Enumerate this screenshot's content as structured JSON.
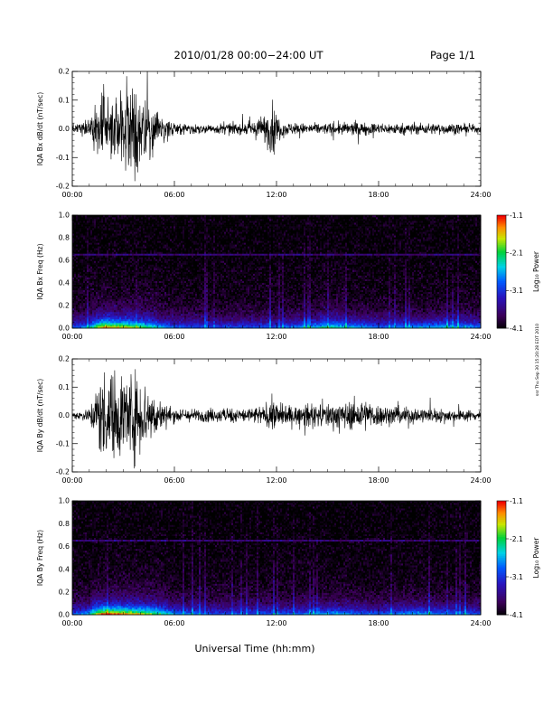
{
  "header": {
    "date_range": "2010/01/28  00:00−24:00 UT",
    "page": "Page 1/1"
  },
  "xaxis": {
    "label": "Universal Time (hh:mm)",
    "ticks": [
      "00:00",
      "06:00",
      "12:00",
      "18:00",
      "24:00"
    ],
    "range_hours": [
      0,
      24
    ]
  },
  "side_note": "ssr Thu Sep 30 15:20:28 EDT 2010",
  "chart_data": [
    {
      "type": "line",
      "name": "bx-waveform",
      "ylabel": "IQA Bx dB/dt (nT/sec)",
      "ylim": [
        -0.2,
        0.2
      ],
      "yticks": [
        "-0.2",
        "-0.1",
        "0.0",
        "0.1",
        "0.2"
      ],
      "ytick_values": [
        -0.2,
        -0.1,
        0.0,
        0.1,
        0.2
      ],
      "x": [
        0,
        0.5,
        1.0,
        1.3,
        1.6,
        2.0,
        2.5,
        3.0,
        3.5,
        4.0,
        4.5,
        5.0,
        5.5,
        6.0,
        7.0,
        8.0,
        9.0,
        10.0,
        10.5,
        11.0,
        11.5,
        11.8,
        12.0,
        12.5,
        13.0,
        14.0,
        15.0,
        16.0,
        17.0,
        18.0,
        19.0,
        20.0,
        21.0,
        22.0,
        23.0,
        24.0
      ],
      "amplitude": [
        0.02,
        0.03,
        0.05,
        0.12,
        0.2,
        0.22,
        0.22,
        0.22,
        0.22,
        0.2,
        0.13,
        0.1,
        0.06,
        0.04,
        0.025,
        0.025,
        0.03,
        0.03,
        0.04,
        0.06,
        0.1,
        0.14,
        0.07,
        0.04,
        0.03,
        0.03,
        0.03,
        0.035,
        0.035,
        0.03,
        0.03,
        0.03,
        0.03,
        0.03,
        0.025,
        0.02
      ]
    },
    {
      "type": "heatmap",
      "name": "bx-spectrogram",
      "ylabel": "IQA Bx Freq (Hz)",
      "ylim": [
        0.0,
        1.0
      ],
      "yticks": [
        "0.0",
        "0.2",
        "0.4",
        "0.6",
        "0.8",
        "1.0"
      ],
      "ytick_values": [
        0.0,
        0.2,
        0.4,
        0.6,
        0.8,
        1.0
      ],
      "colorbar_label": "Log₁₀ Power",
      "colorbar_ticks": [
        "-1.1",
        "-2.1",
        "-3.1",
        "-4.1"
      ],
      "colorbar_values": [
        -1.1,
        -2.1,
        -3.1,
        -4.1
      ],
      "line_frequency_hz": 0.65,
      "x": [
        0,
        1.0,
        1.5,
        2.0,
        3.0,
        4.0,
        5.0,
        6.0,
        8.0,
        10.0,
        12.0,
        14.0,
        15.0,
        16.0,
        17.0,
        18.0,
        20.0,
        22.0,
        24.0
      ],
      "low_freq_power": [
        -3.0,
        -2.7,
        -1.8,
        -1.4,
        -1.7,
        -2.0,
        -2.5,
        -2.9,
        -3.1,
        -3.0,
        -3.0,
        -2.6,
        -2.4,
        -2.5,
        -2.6,
        -2.9,
        -2.7,
        -2.5,
        -2.8
      ]
    },
    {
      "type": "line",
      "name": "by-waveform",
      "ylabel": "IQA By dB/dt (nT/sec)",
      "ylim": [
        -0.2,
        0.2
      ],
      "yticks": [
        "-0.2",
        "-0.1",
        "0.0",
        "0.1",
        "0.2"
      ],
      "ytick_values": [
        -0.2,
        -0.1,
        0.0,
        0.1,
        0.2
      ],
      "x": [
        0,
        0.5,
        1.0,
        1.3,
        1.6,
        2.0,
        2.5,
        3.0,
        3.5,
        4.0,
        4.5,
        5.0,
        5.5,
        6.0,
        7.0,
        8.0,
        9.0,
        10.0,
        11.0,
        11.5,
        11.9,
        12.2,
        13.0,
        14.0,
        15.0,
        16.0,
        17.0,
        18.0,
        19.0,
        20.0,
        21.0,
        22.0,
        23.0,
        24.0
      ],
      "amplitude": [
        0.02,
        0.025,
        0.04,
        0.12,
        0.22,
        0.24,
        0.24,
        0.24,
        0.24,
        0.22,
        0.16,
        0.1,
        0.06,
        0.04,
        0.035,
        0.035,
        0.04,
        0.04,
        0.05,
        0.06,
        0.1,
        0.06,
        0.05,
        0.06,
        0.07,
        0.07,
        0.09,
        0.06,
        0.05,
        0.045,
        0.04,
        0.035,
        0.03,
        0.03
      ]
    },
    {
      "type": "heatmap",
      "name": "by-spectrogram",
      "ylabel": "IQA By Freq (Hz)",
      "ylim": [
        0.0,
        1.0
      ],
      "yticks": [
        "0.0",
        "0.2",
        "0.4",
        "0.6",
        "0.8",
        "1.0"
      ],
      "ytick_values": [
        0.0,
        0.2,
        0.4,
        0.6,
        0.8,
        1.0
      ],
      "colorbar_label": "Log₁₀ Power",
      "colorbar_ticks": [
        "-1.1",
        "-2.1",
        "-3.1",
        "-4.1"
      ],
      "colorbar_values": [
        -1.1,
        -2.1,
        -3.1,
        -4.1
      ],
      "line_frequency_hz": 0.65,
      "x": [
        0,
        1.0,
        1.5,
        2.0,
        3.0,
        4.0,
        5.0,
        6.0,
        8.0,
        10.0,
        12.0,
        14.0,
        15.0,
        16.0,
        17.0,
        18.0,
        20.0,
        22.0,
        24.0
      ],
      "low_freq_power": [
        -3.0,
        -2.6,
        -1.6,
        -1.2,
        -1.5,
        -1.8,
        -2.2,
        -2.7,
        -3.0,
        -3.0,
        -3.0,
        -2.8,
        -2.6,
        -2.7,
        -2.9,
        -3.0,
        -2.6,
        -2.9,
        -3.0
      ]
    }
  ]
}
